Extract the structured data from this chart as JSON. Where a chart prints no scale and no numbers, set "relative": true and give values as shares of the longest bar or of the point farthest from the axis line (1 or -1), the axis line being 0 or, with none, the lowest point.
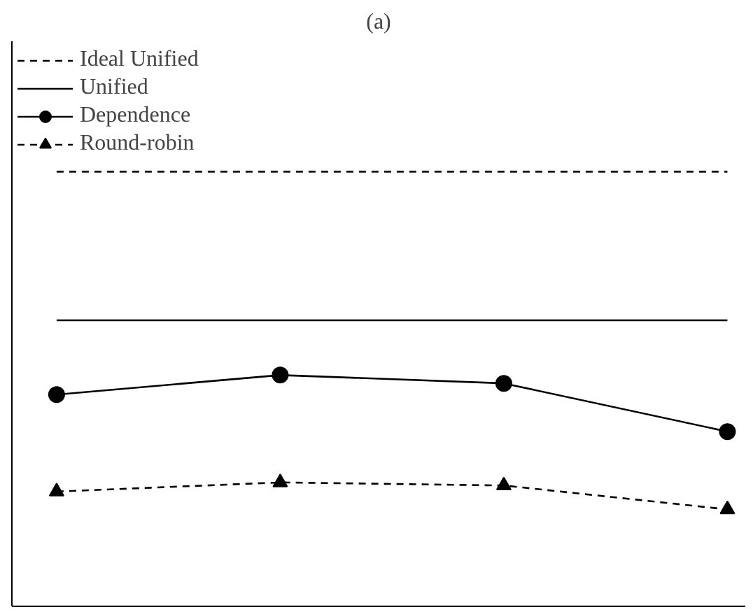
{
  "chart_data": {
    "type": "line",
    "title": "(a)",
    "relative": true,
    "categories": [
      null,
      null,
      null,
      null
    ],
    "series": [
      {
        "name": "Ideal Unified",
        "color": "#000000",
        "values": [
          1,
          1,
          1,
          1
        ],
        "marker": "none",
        "line_style": "dashed"
      },
      {
        "name": "Unified",
        "color": "#000000",
        "values": [
          0.658,
          0.658,
          0.658,
          0.658
        ],
        "marker": "none",
        "line_style": "solid"
      },
      {
        "name": "Dependence",
        "color": "#000000",
        "values": [
          0.487,
          0.532,
          0.513,
          0.402
        ],
        "marker": "circle",
        "line_style": "solid"
      },
      {
        "name": "Round-robin",
        "color": "#000000",
        "values": [
          0.264,
          0.285,
          0.278,
          0.223
        ],
        "marker": "triangle",
        "line_style": "dashed"
      }
    ],
    "legend": "top left",
    "grid": false
  }
}
